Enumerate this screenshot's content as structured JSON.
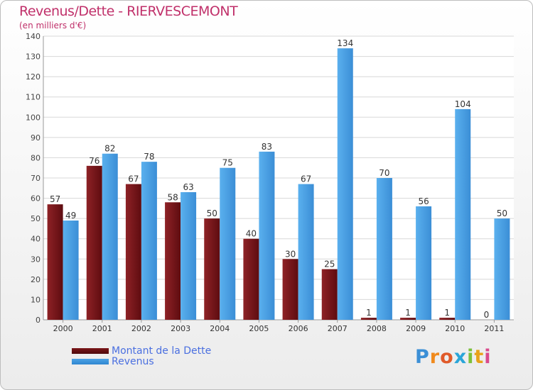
{
  "title": "Revenus/Dette - RIERVESCEMONT",
  "subtitle": "(en milliers d'€)",
  "logo": "Proxiti",
  "colors": {
    "debt": "#7a1518",
    "revenue": "#4ca2e6",
    "title": "#c0306a",
    "legend_text": "#4a6fe0"
  },
  "chart_data": {
    "type": "bar",
    "categories": [
      "2000",
      "2001",
      "2002",
      "2003",
      "2004",
      "2005",
      "2006",
      "2007",
      "2008",
      "2009",
      "2010",
      "2011"
    ],
    "series": [
      {
        "name": "Montant de la Dette",
        "values": [
          57,
          76,
          67,
          58,
          50,
          40,
          30,
          25,
          1,
          1,
          1,
          0
        ]
      },
      {
        "name": "Revenus",
        "values": [
          49,
          82,
          78,
          63,
          75,
          83,
          67,
          134,
          70,
          56,
          104,
          50
        ]
      }
    ],
    "ylim": [
      0,
      140
    ],
    "yticks": [
      0,
      10,
      20,
      30,
      40,
      50,
      60,
      70,
      80,
      90,
      100,
      110,
      120,
      130,
      140
    ],
    "grid": true,
    "legend_position": "bottom-left"
  }
}
